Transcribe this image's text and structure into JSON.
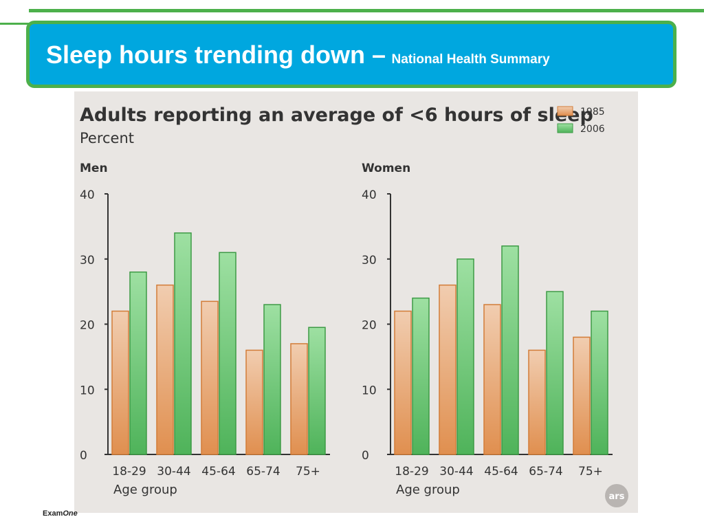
{
  "header": {
    "title": "Sleep hours trending down –",
    "subtitle": "National Health Summary"
  },
  "footer": {
    "brand_a": "Exam",
    "brand_b": "One"
  },
  "figure": {
    "title": "Adults reporting an average of <6 hours of sleep",
    "unit": "Percent",
    "xlabel": "Age group",
    "badge": "ars"
  },
  "colors": {
    "banner": "#00a7df",
    "frame": "#4cb04b",
    "series_1985": "#e6a56e",
    "series_2006": "#72c97a"
  },
  "chart_data": [
    {
      "type": "bar",
      "title": "Men",
      "ylabel": "Percent",
      "xlabel": "Age group",
      "categories": [
        "18-29",
        "30-44",
        "45-64",
        "65-74",
        "75+"
      ],
      "ylim": [
        0,
        40
      ],
      "yticks": [
        0,
        10,
        20,
        30,
        40
      ],
      "grid": false,
      "legend": "top-right",
      "series": [
        {
          "name": "1985",
          "values": [
            22,
            26,
            23.5,
            16,
            17
          ]
        },
        {
          "name": "2006",
          "values": [
            28,
            34,
            31,
            23,
            19.5
          ]
        }
      ]
    },
    {
      "type": "bar",
      "title": "Women",
      "ylabel": "Percent",
      "xlabel": "Age group",
      "categories": [
        "18-29",
        "30-44",
        "45-64",
        "65-74",
        "75+"
      ],
      "ylim": [
        0,
        40
      ],
      "yticks": [
        0,
        10,
        20,
        30,
        40
      ],
      "grid": false,
      "legend": "top-right",
      "series": [
        {
          "name": "1985",
          "values": [
            22,
            26,
            23,
            16,
            18
          ]
        },
        {
          "name": "2006",
          "values": [
            24,
            30,
            32,
            25,
            22
          ]
        }
      ]
    }
  ]
}
